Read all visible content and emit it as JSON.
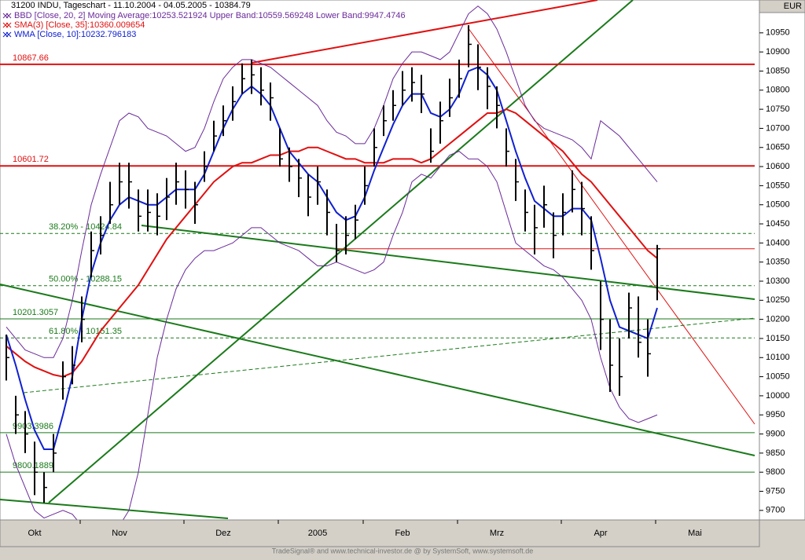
{
  "chart_data": {
    "type": "stock",
    "title": "31200  INDU, Tageschart - 11.10.2004 - 04.05.2005 - 10384.79",
    "currency": "EUR",
    "footer": "TradeSignal® and www.technical-investor.de @ by SystemSoft, www.systemsoft.de",
    "categories": [
      null,
      null,
      null,
      "Okt",
      null,
      null,
      null,
      null,
      null,
      null,
      null,
      null,
      "Nov",
      null,
      null,
      null,
      null,
      null,
      null,
      null,
      null,
      null,
      null,
      "Dez",
      null,
      null,
      null,
      null,
      null,
      null,
      null,
      null,
      null,
      "2005",
      null,
      null,
      null,
      null,
      null,
      null,
      null,
      null,
      "Feb",
      null,
      null,
      null,
      null,
      null,
      null,
      null,
      null,
      null,
      "Mrz",
      null,
      null,
      null,
      null,
      null,
      null,
      null,
      null,
      null,
      null,
      "Apr",
      null,
      null,
      null,
      null,
      null,
      null,
      null,
      null,
      null,
      "Mai",
      null,
      null,
      null,
      null,
      null,
      null
    ],
    "high": [
      10160,
      10000,
      9960,
      9880,
      9800,
      9900,
      10090,
      10130,
      10260,
      10430,
      10470,
      10560,
      10610,
      10610,
      10540,
      10540,
      10530,
      10570,
      10610,
      10590,
      10560,
      10640,
      10720,
      10760,
      10810,
      10870,
      10880,
      10860,
      10820,
      10700,
      10650,
      10620,
      10580,
      10600,
      10540,
      10450,
      10470,
      10500,
      10600,
      10700,
      10760,
      10800,
      10850,
      10860,
      10840,
      10700,
      10770,
      10830,
      10880,
      10970,
      10920,
      10860,
      10810,
      10700,
      10620,
      10540,
      10500,
      10550,
      10480,
      10530,
      10590,
      10560,
      10470,
      10300,
      10200,
      10150,
      10270,
      10260,
      10200,
      10395,
      null,
      null,
      null,
      null,
      null,
      null,
      null,
      null,
      null,
      null
    ],
    "low": [
      10040,
      9900,
      9850,
      9740,
      9720,
      9800,
      9990,
      10030,
      10140,
      10310,
      10370,
      10450,
      10500,
      10490,
      10430,
      10430,
      10420,
      10460,
      10500,
      10490,
      10450,
      10560,
      10640,
      10680,
      10720,
      10790,
      10790,
      10760,
      10720,
      10600,
      10560,
      10520,
      10470,
      10500,
      10420,
      10350,
      10370,
      10410,
      10500,
      10600,
      10680,
      10720,
      10760,
      10770,
      10740,
      10610,
      10660,
      10730,
      10780,
      10860,
      10800,
      10750,
      10700,
      10600,
      10510,
      10430,
      10370,
      10440,
      10360,
      10420,
      10480,
      10420,
      10330,
      10120,
      10010,
      10000,
      10150,
      10100,
      10050,
      10250,
      null,
      null,
      null,
      null,
      null,
      null,
      null,
      null,
      null,
      null
    ],
    "close": [
      10100,
      9950,
      9900,
      9800,
      9760,
      9850,
      10050,
      10080,
      10200,
      10380,
      10420,
      10500,
      10560,
      10560,
      10470,
      10480,
      10470,
      10520,
      10560,
      10540,
      10500,
      10600,
      10680,
      10720,
      10770,
      10830,
      10840,
      10800,
      10780,
      10620,
      10600,
      10570,
      10520,
      10560,
      10480,
      10380,
      10420,
      10460,
      10550,
      10650,
      10720,
      10760,
      10800,
      10820,
      10790,
      10640,
      10720,
      10780,
      10830,
      10920,
      10860,
      10810,
      10760,
      10640,
      10560,
      10480,
      10440,
      10500,
      10420,
      10480,
      10540,
      10490,
      10380,
      10200,
      10080,
      10050,
      10230,
      10140,
      10110,
      10384.79,
      null,
      null,
      null,
      null,
      null,
      null,
      null,
      null,
      null,
      null
    ],
    "bar_color": "#000000",
    "series": [
      {
        "name": "BBD [Close, 20, 2] Moving Average:10253.521924 Upper Band:10559.569248 Lower Band:9947.4746",
        "color": "#6a2a9a",
        "upper": [
          10180,
          10150,
          10120,
          10110,
          10100,
          10100,
          10150,
          10250,
          10380,
          10500,
          10580,
          10650,
          10720,
          10740,
          10730,
          10700,
          10690,
          10680,
          10660,
          10640,
          10650,
          10700,
          10770,
          10830,
          10860,
          10880,
          10880,
          10870,
          10860,
          10840,
          10820,
          10800,
          10780,
          10760,
          10720,
          10690,
          10680,
          10660,
          10660,
          10700,
          10760,
          10830,
          10870,
          10900,
          10900,
          10890,
          10880,
          10900,
          10950,
          11000,
          11020,
          11000,
          10960,
          10900,
          10830,
          10760,
          10720,
          10700,
          10690,
          10680,
          10670,
          10650,
          10620,
          10720,
          10700,
          10680,
          10650,
          10620,
          10590,
          10560,
          null,
          null,
          null,
          null,
          null,
          null,
          null,
          null,
          null,
          null
        ],
        "lower": [
          9900,
          9820,
          9760,
          9700,
          9680,
          9690,
          9700,
          9690,
          9660,
          9640,
          9630,
          9640,
          9660,
          9700,
          9800,
          9950,
          10100,
          10200,
          10280,
          10330,
          10360,
          10380,
          10380,
          10390,
          10400,
          10420,
          10440,
          10440,
          10420,
          10400,
          10390,
          10380,
          10360,
          10340,
          10340,
          10350,
          10340,
          10330,
          10320,
          10330,
          10350,
          10420,
          10480,
          10560,
          10580,
          10570,
          10600,
          10630,
          10640,
          10620,
          10620,
          10600,
          10560,
          10480,
          10400,
          10380,
          10360,
          10340,
          10330,
          10310,
          10280,
          10250,
          10200,
          10100,
          10020,
          9970,
          9940,
          9930,
          9940,
          9950,
          null,
          null,
          null,
          null,
          null,
          null,
          null,
          null,
          null,
          null
        ]
      },
      {
        "name": "SMA(3) [Close, 35]:10360.009654",
        "color": "#e01010",
        "values": [
          10130,
          10110,
          10090,
          10075,
          10065,
          10055,
          10050,
          10060,
          10090,
          10130,
          10170,
          10200,
          10230,
          10260,
          10290,
          10330,
          10370,
          10410,
          10440,
          10470,
          10500,
          10530,
          10560,
          10580,
          10600,
          10610,
          10610,
          10620,
          10630,
          10630,
          10640,
          10640,
          10650,
          10650,
          10640,
          10630,
          10620,
          10620,
          10610,
          10610,
          10610,
          10620,
          10620,
          10620,
          10610,
          10620,
          10640,
          10660,
          10680,
          10700,
          10720,
          10740,
          10740,
          10750,
          10740,
          10720,
          10700,
          10680,
          10660,
          10640,
          10610,
          10580,
          10560,
          10530,
          10500,
          10470,
          10440,
          10410,
          10380,
          10360,
          null,
          null,
          null,
          null,
          null,
          null,
          null,
          null,
          null,
          null
        ]
      },
      {
        "name": "WMA [Close, 10]:10232.796183",
        "color": "#1020d0",
        "values": [
          10160,
          10080,
          9990,
          9910,
          9860,
          9860,
          9950,
          10050,
          10200,
          10320,
          10400,
          10460,
          10500,
          10520,
          10510,
          10500,
          10500,
          10520,
          10540,
          10540,
          10540,
          10580,
          10640,
          10700,
          10750,
          10790,
          10810,
          10790,
          10760,
          10700,
          10640,
          10610,
          10580,
          10560,
          10520,
          10480,
          10460,
          10470,
          10520,
          10590,
          10650,
          10710,
          10760,
          10790,
          10790,
          10740,
          10730,
          10750,
          10790,
          10850,
          10860,
          10840,
          10800,
          10720,
          10640,
          10570,
          10510,
          10490,
          10470,
          10470,
          10490,
          10490,
          10460,
          10360,
          10250,
          10180,
          10170,
          10160,
          10150,
          10230,
          null,
          null,
          null,
          null,
          null,
          null,
          null,
          null,
          null,
          null
        ]
      }
    ],
    "levels": [
      {
        "value": 10867.66,
        "label": "10867.66",
        "color": "#e01010",
        "style": "solid"
      },
      {
        "value": 10601.72,
        "label": "10601.72",
        "color": "#e01010",
        "style": "solid"
      },
      {
        "value": 10424.84,
        "label": "38.20% - 10424.84",
        "color": "#1a7a1a",
        "style": "dashed"
      },
      {
        "value": 10384.79,
        "color": "#e01010",
        "style": "thin"
      },
      {
        "value": 10288.15,
        "label": "50.00% - 10288.15",
        "color": "#1a7a1a",
        "style": "dashed"
      },
      {
        "value": 10201.3057,
        "label": "10201.3057",
        "color": "#1a7a1a",
        "style": "solid"
      },
      {
        "value": 10151.35,
        "label": "61.80% - 10151.35",
        "color": "#1a7a1a",
        "style": "dashed"
      },
      {
        "value": 9903.3986,
        "label": "9903.3986",
        "color": "#1a7a1a",
        "style": "solid"
      },
      {
        "value": 9800.1889,
        "label": "9800.1889",
        "color": "#1a7a1a",
        "style": "solid"
      }
    ],
    "ylim": [
      9675,
      11036
    ],
    "yticks": [
      9700,
      9750,
      9800,
      9850,
      9900,
      9950,
      10000,
      10050,
      10100,
      10150,
      10200,
      10250,
      10300,
      10350,
      10400,
      10450,
      10500,
      10550,
      10600,
      10650,
      10700,
      10750,
      10800,
      10850,
      10900,
      10950
    ]
  }
}
